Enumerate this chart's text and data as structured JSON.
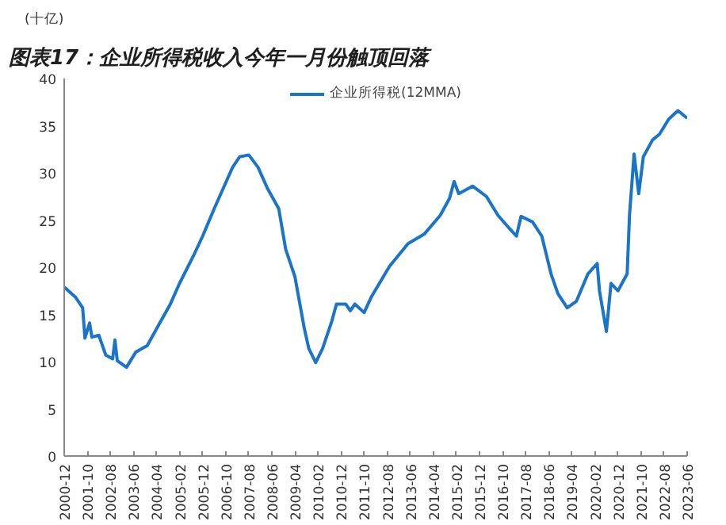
{
  "chart_data": {
    "type": "line",
    "title": "图表17：企业所得税收入今年一月份触顶回落",
    "ylabel": "(十亿)",
    "x": [
      "2000-12",
      "2001-05",
      "2001-08",
      "2001-09",
      "2001-11",
      "2001-12",
      "2002-03",
      "2002-06",
      "2002-09",
      "2002-10",
      "2002-11",
      "2003-03",
      "2003-07",
      "2003-12",
      "2004-05",
      "2004-10",
      "2005-02",
      "2005-08",
      "2005-12",
      "2006-05",
      "2006-09",
      "2007-01",
      "2007-04",
      "2007-08",
      "2007-12",
      "2008-04",
      "2008-09",
      "2008-12",
      "2009-04",
      "2009-08",
      "2009-10",
      "2010-01",
      "2010-04",
      "2010-08",
      "2010-10",
      "2011-02",
      "2011-04",
      "2011-06",
      "2011-10",
      "2012-01",
      "2012-09",
      "2013-05",
      "2013-12",
      "2014-07",
      "2014-11",
      "2015-01",
      "2015-03",
      "2015-09",
      "2016-03",
      "2016-08",
      "2017-01",
      "2017-04",
      "2017-06",
      "2017-11",
      "2018-03",
      "2018-07",
      "2018-10",
      "2019-02",
      "2019-06",
      "2019-11",
      "2020-03",
      "2020-04",
      "2020-07",
      "2020-09",
      "2020-12",
      "2021-04",
      "2021-05",
      "2021-07",
      "2021-09",
      "2021-11",
      "2022-03",
      "2022-06",
      "2022-10",
      "2023-02",
      "2023-06"
    ],
    "series": [
      {
        "name": "企业所得税(12MMA)",
        "color": "#1a75c9",
        "values": [
          17.9,
          16.8,
          15.7,
          12.5,
          14.1,
          12.6,
          12.8,
          10.7,
          10.3,
          12.3,
          10.1,
          9.4,
          11,
          11.7,
          13.9,
          16.1,
          18.3,
          21.2,
          23.3,
          26.2,
          28.4,
          30.6,
          31.7,
          31.9,
          30.6,
          28.4,
          26.2,
          21.9,
          19,
          13.6,
          11.4,
          9.9,
          11.4,
          14.3,
          16.1,
          16.1,
          15.4,
          16.1,
          15.2,
          16.8,
          20.1,
          22.5,
          23.5,
          25.5,
          27.3,
          29.1,
          27.8,
          28.6,
          27.5,
          25.5,
          24.1,
          23.3,
          25.4,
          24.8,
          23.3,
          19.3,
          17.2,
          15.7,
          16.4,
          19.3,
          20.4,
          17.5,
          13.2,
          18.3,
          17.5,
          19.3,
          25.5,
          32,
          27.8,
          31.7,
          33.5,
          34.1,
          35.7,
          36.6,
          35.8
        ]
      }
    ],
    "xlim": [
      "2000-12",
      "2023-06"
    ],
    "xticks": [
      "2000-12",
      "2001-10",
      "2002-08",
      "2003-06",
      "2004-04",
      "2005-02",
      "2005-12",
      "2006-10",
      "2007-08",
      "2008-06",
      "2009-04",
      "2010-02",
      "2010-12",
      "2011-10",
      "2012-08",
      "2013-06",
      "2014-04",
      "2015-02",
      "2015-12",
      "2016-10",
      "2017-08",
      "2018-06",
      "2019-04",
      "2020-02",
      "2020-12",
      "2021-10",
      "2022-08",
      "2023-06"
    ],
    "ylim": [
      0,
      40
    ],
    "yticks": [
      0,
      5,
      10,
      15,
      20,
      25,
      30,
      35,
      40
    ],
    "grid": false,
    "legend": "top",
    "line_style": "solid",
    "marker": "none"
  }
}
